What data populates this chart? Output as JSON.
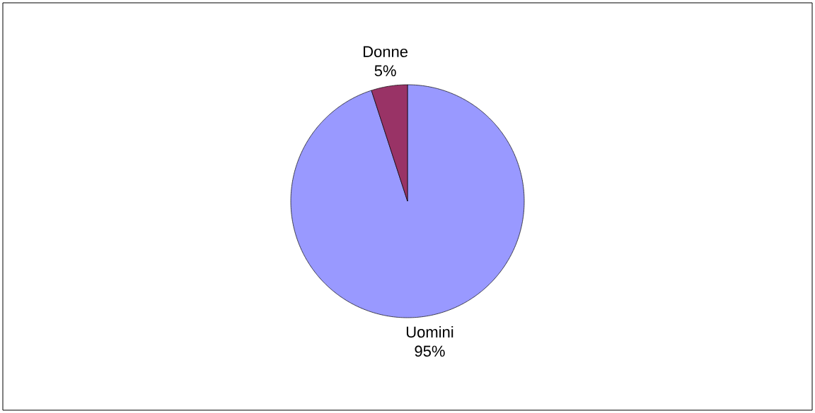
{
  "chart_data": {
    "type": "pie",
    "categories": [
      "Uomini",
      "Donne"
    ],
    "values": [
      95,
      5
    ],
    "colors": [
      "#9999ff",
      "#993366"
    ],
    "value_labels": [
      "95%",
      "5%"
    ]
  }
}
